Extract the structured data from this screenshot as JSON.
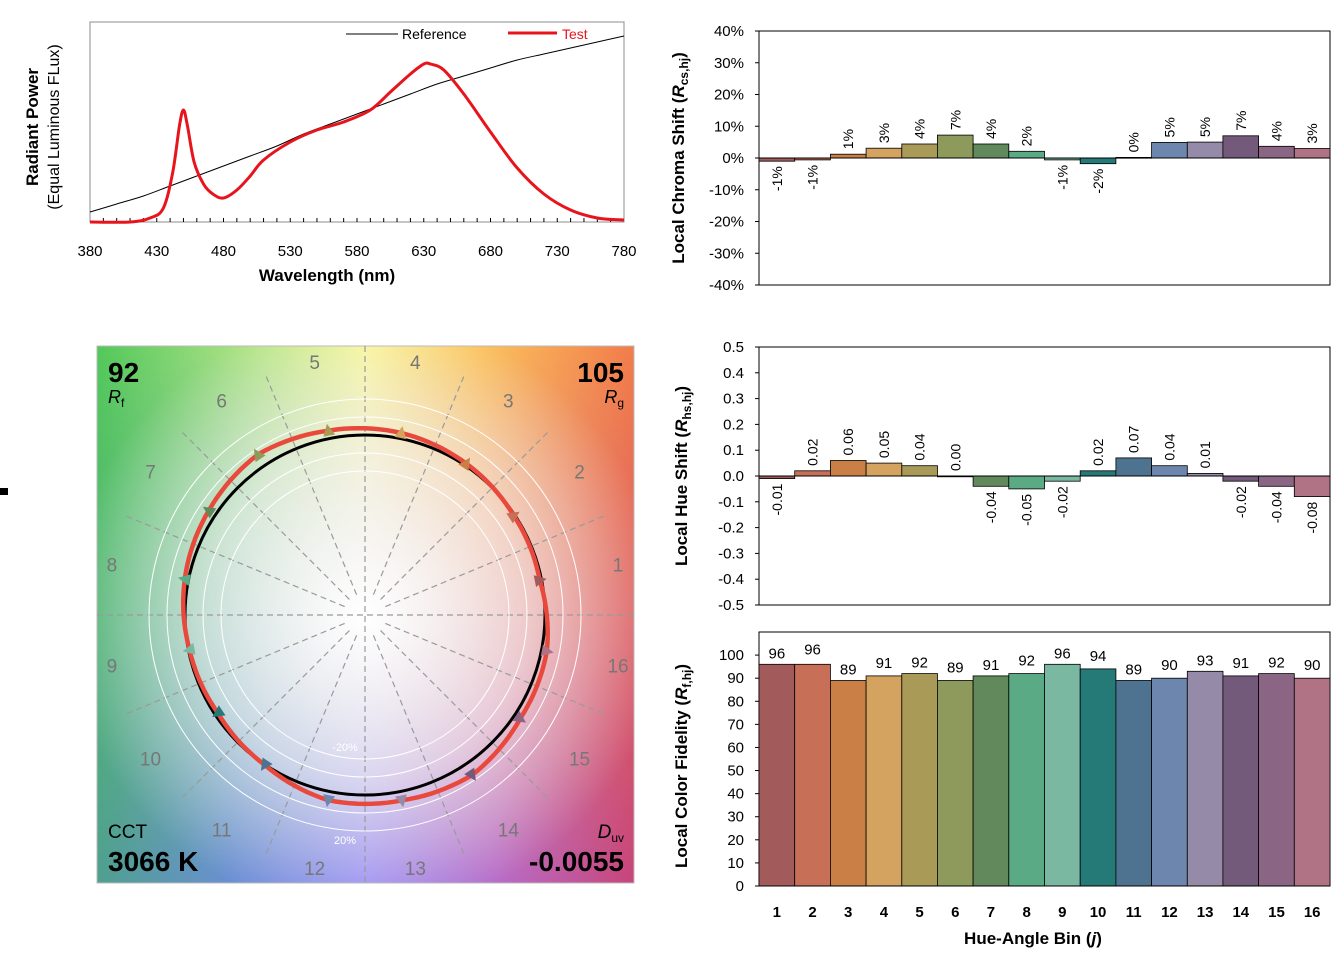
{
  "colors": {
    "test": "#e8141c",
    "reference": "#000000",
    "vector_outline": "#e8493c",
    "bins": [
      "#a35a5a",
      "#c86f58",
      "#c97f45",
      "#d4a35f",
      "#a99a58",
      "#8d9a5b",
      "#62895c",
      "#5aab85",
      "#7ab8a2",
      "#257a78",
      "#4e7390",
      "#6c86ad",
      "#968aa9",
      "#73597a",
      "#8a6584",
      "#b07386"
    ]
  },
  "chart_data": [
    {
      "id": "spd",
      "type": "line",
      "xlabel": "Wavelength (nm)",
      "ylabel": "Radiant Power",
      "ylabel_sub": "(Equal Luminous FLux)",
      "xlim": [
        380,
        780
      ],
      "xticks": [
        380,
        430,
        480,
        530,
        580,
        630,
        680,
        730,
        780
      ],
      "ylim": [
        0,
        1
      ],
      "series": [
        {
          "name": "Reference",
          "x": [
            380,
            400,
            420,
            440,
            460,
            480,
            500,
            520,
            540,
            560,
            580,
            600,
            620,
            640,
            660,
            680,
            700,
            720,
            740,
            760,
            780
          ],
          "y": [
            0.05,
            0.09,
            0.13,
            0.18,
            0.23,
            0.28,
            0.33,
            0.38,
            0.44,
            0.49,
            0.54,
            0.59,
            0.64,
            0.69,
            0.73,
            0.77,
            0.81,
            0.84,
            0.87,
            0.9,
            0.93
          ]
        },
        {
          "name": "Test",
          "x": [
            380,
            410,
            425,
            435,
            442,
            447,
            450,
            453,
            458,
            465,
            472,
            480,
            490,
            500,
            510,
            530,
            550,
            570,
            590,
            605,
            620,
            630,
            635,
            645,
            660,
            680,
            700,
            720,
            740,
            760,
            780
          ],
          "y": [
            0.0,
            0.0,
            0.02,
            0.07,
            0.25,
            0.48,
            0.56,
            0.48,
            0.3,
            0.19,
            0.14,
            0.12,
            0.16,
            0.23,
            0.31,
            0.4,
            0.46,
            0.5,
            0.56,
            0.65,
            0.74,
            0.79,
            0.79,
            0.76,
            0.64,
            0.45,
            0.27,
            0.14,
            0.06,
            0.02,
            0.01
          ]
        }
      ]
    },
    {
      "id": "chroma",
      "type": "bar",
      "ylabel": "Local Chroma Shift",
      "ylabel_sym": "R",
      "ylabel_sub": "cs,hj",
      "ylim": [
        -0.4,
        0.4
      ],
      "yticks": [
        -0.4,
        -0.3,
        -0.2,
        -0.1,
        0,
        0.1,
        0.2,
        0.3,
        0.4
      ],
      "ytick_labels": [
        "-40%",
        "-30%",
        "-20%",
        "-10%",
        "0%",
        "10%",
        "20%",
        "30%",
        "40%"
      ],
      "values": [
        -0.01,
        -0.006,
        0.012,
        0.031,
        0.044,
        0.072,
        0.044,
        0.021,
        -0.006,
        -0.018,
        0.002,
        0.049,
        0.05,
        0.07,
        0.037,
        0.03
      ],
      "data_labels": [
        "-1%",
        "-1%",
        "1%",
        "3%",
        "4%",
        "7%",
        "4%",
        "2%",
        "-1%",
        "-2%",
        "0%",
        "5%",
        "5%",
        "7%",
        "4%",
        "3%"
      ]
    },
    {
      "id": "hue",
      "type": "bar",
      "ylabel": "Local Hue Shift",
      "ylabel_sym": "R",
      "ylabel_sub": "hs,hj",
      "ylim": [
        -0.5,
        0.5
      ],
      "yticks": [
        -0.5,
        -0.4,
        -0.3,
        -0.2,
        -0.1,
        0,
        0.1,
        0.2,
        0.3,
        0.4,
        0.5
      ],
      "ytick_labels": [
        "-0.5",
        "-0.4",
        "-0.3",
        "-0.2",
        "-0.1",
        "0.0",
        "0.1",
        "0.2",
        "0.3",
        "0.4",
        "0.5"
      ],
      "values": [
        -0.01,
        0.02,
        0.06,
        0.05,
        0.04,
        0.0,
        -0.04,
        -0.05,
        -0.02,
        0.02,
        0.07,
        0.04,
        0.01,
        -0.02,
        -0.04,
        -0.08
      ],
      "data_labels": [
        "-0.01",
        "0.02",
        "0.06",
        "0.05",
        "0.04",
        "0.00",
        "-0.04",
        "-0.05",
        "-0.02",
        "0.02",
        "0.07",
        "0.04",
        "0.01",
        "-0.02",
        "-0.04",
        "-0.08"
      ]
    },
    {
      "id": "fidelity",
      "type": "bar",
      "xlabel": "Hue-Angle Bin",
      "xlabel_sym": "j",
      "ylabel": "Local Color Fidelity",
      "ylabel_sym": "R",
      "ylabel_sub": "f,hj",
      "ylim": [
        0,
        110
      ],
      "yticks": [
        0,
        10,
        20,
        30,
        40,
        50,
        60,
        70,
        80,
        90,
        100
      ],
      "categories": [
        "1",
        "2",
        "3",
        "4",
        "5",
        "6",
        "7",
        "8",
        "9",
        "10",
        "11",
        "12",
        "13",
        "14",
        "15",
        "16"
      ],
      "values": [
        96,
        96,
        89,
        91,
        92,
        89,
        91,
        92,
        96,
        94,
        89,
        90,
        93,
        91,
        92,
        90
      ],
      "data_labels": [
        "96",
        "96",
        "89",
        "91",
        "92",
        "89",
        "91",
        "92",
        "96",
        "94",
        "89",
        "90",
        "93",
        "91",
        "92",
        "90"
      ]
    },
    {
      "id": "vector",
      "type": "scatter",
      "bin_labels": [
        "1",
        "2",
        "3",
        "4",
        "5",
        "6",
        "7",
        "8",
        "9",
        "10",
        "11",
        "12",
        "13",
        "14",
        "15",
        "16"
      ],
      "ring_labels": [
        "-20%",
        "20%"
      ],
      "rf_value": "92",
      "rf_sym": "R",
      "rf_sub": "f",
      "rg_value": "105",
      "rg_sym": "R",
      "rg_sub": "g",
      "cct_label": "CCT",
      "cct_value": "3066 K",
      "duv_sym": "D",
      "duv_sub": "uv",
      "duv_value": "-0.0055",
      "chroma_shift": [
        -0.01,
        -0.006,
        0.012,
        0.031,
        0.044,
        0.072,
        0.044,
        0.021,
        -0.006,
        -0.018,
        0.002,
        0.049,
        0.05,
        0.07,
        0.037,
        0.03
      ]
    }
  ]
}
